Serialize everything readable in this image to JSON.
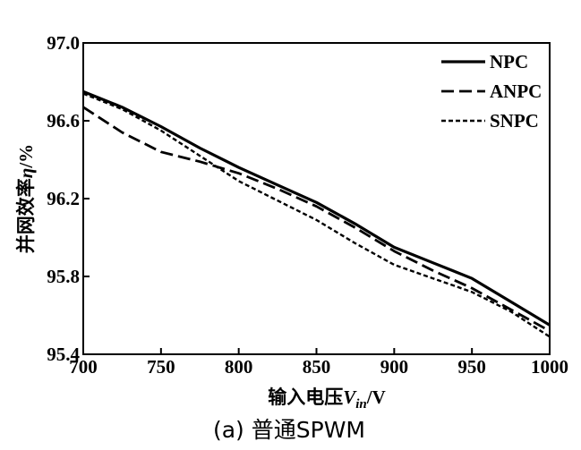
{
  "chart_data": {
    "type": "line",
    "xlabel_main": "输入电压",
    "xlabel_var": "V",
    "xlabel_sub": "in",
    "xlabel_unit": "/V",
    "ylabel_main": "并网效率",
    "ylabel_var": "η",
    "ylabel_unit": "/%",
    "caption": "(a)  普通SPWM",
    "xlim": [
      700,
      1000
    ],
    "ylim": [
      95.4,
      97.0
    ],
    "xticks": [
      "700",
      "750",
      "800",
      "850",
      "900",
      "950",
      "1000"
    ],
    "yticks": [
      "95.4",
      "95.8",
      "96.2",
      "96.6",
      "97.0"
    ],
    "legend_position": "top-right",
    "series": [
      {
        "name": "NPC",
        "dash": "solid",
        "x": [
          700,
          725,
          750,
          775,
          800,
          825,
          850,
          875,
          900,
          925,
          950,
          975,
          1000
        ],
        "y": [
          96.75,
          96.67,
          96.57,
          96.46,
          96.36,
          96.27,
          96.18,
          96.07,
          95.95,
          95.87,
          95.79,
          95.67,
          95.55
        ]
      },
      {
        "name": "ANPC",
        "dash": "long-dash",
        "x": [
          700,
          725,
          750,
          775,
          800,
          825,
          850,
          875,
          900,
          925,
          950,
          975,
          1000
        ],
        "y": [
          96.67,
          96.54,
          96.44,
          96.39,
          96.33,
          96.25,
          96.16,
          96.05,
          95.93,
          95.83,
          95.74,
          95.63,
          95.52
        ]
      },
      {
        "name": "SNPC",
        "dash": "short-dash",
        "x": [
          700,
          725,
          750,
          775,
          800,
          825,
          850,
          875,
          900,
          925,
          950,
          975,
          1000
        ],
        "y": [
          96.74,
          96.66,
          96.55,
          96.42,
          96.29,
          96.19,
          96.09,
          95.97,
          95.86,
          95.79,
          95.72,
          95.62,
          95.49
        ]
      }
    ]
  }
}
